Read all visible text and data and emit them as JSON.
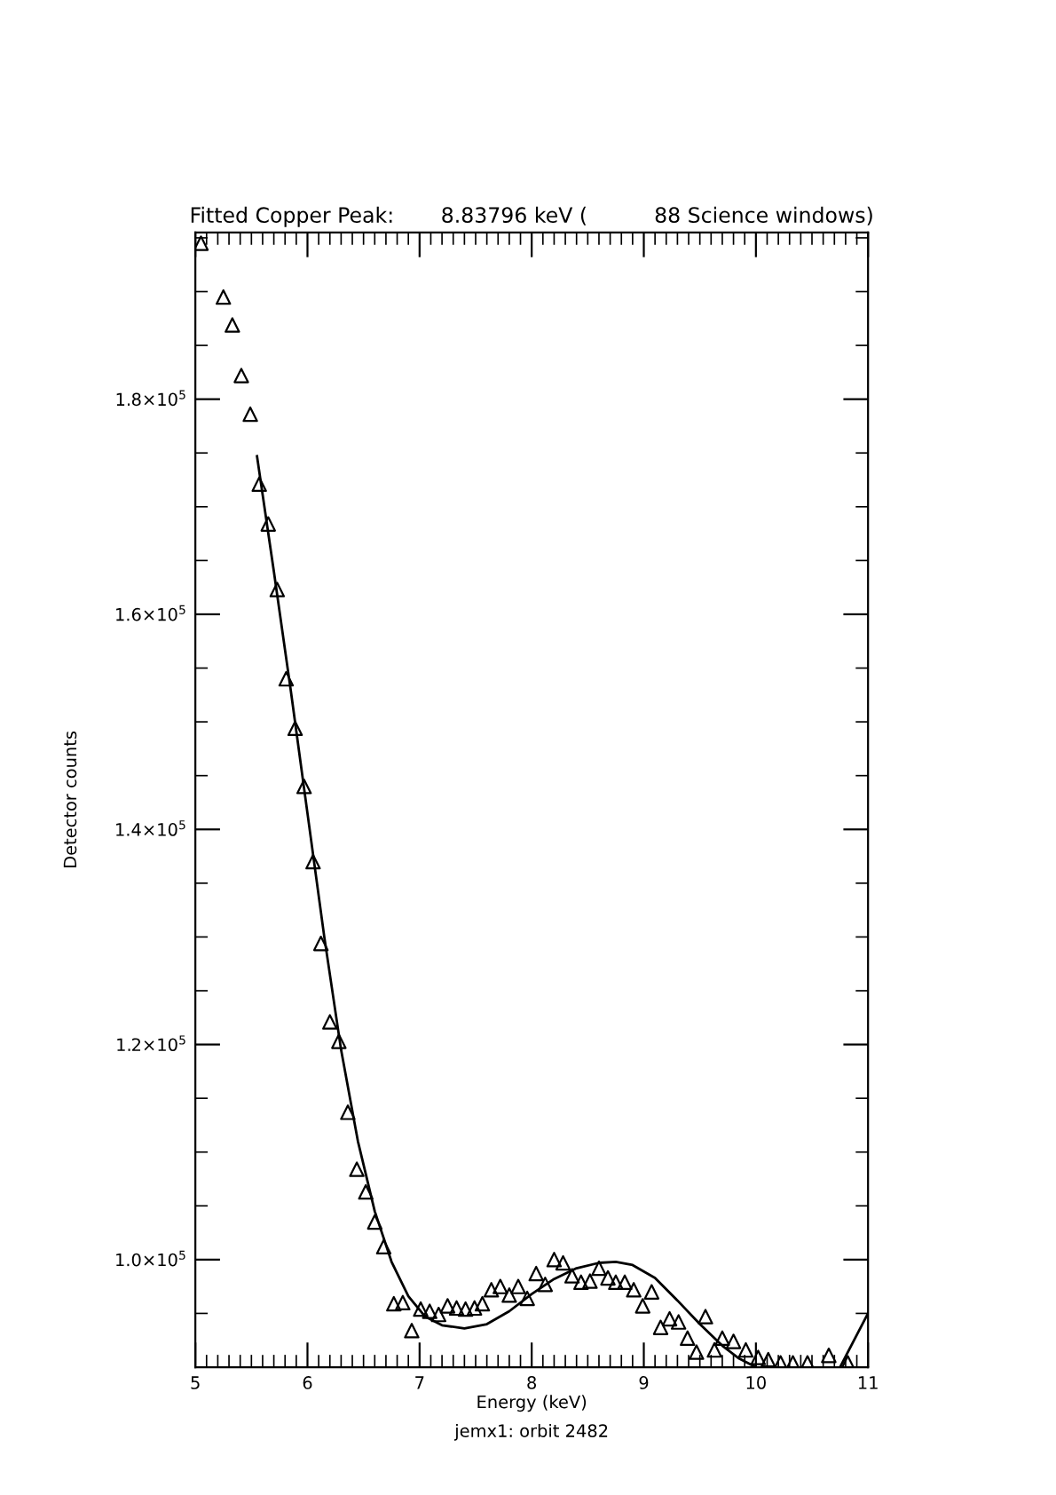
{
  "chart_data": {
    "type": "scatter",
    "title": "Fitted Copper Peak:       8.83796 keV (          88 Science windows)",
    "xlabel": "Energy (keV)",
    "ylabel": "Detector counts",
    "annotations": [
      "jemx1: orbit 2482"
    ],
    "marker": "triangle",
    "grid": false,
    "legend": false,
    "xlim": [
      5,
      11
    ],
    "ylim": [
      90000,
      195500
    ],
    "xticks": [
      5,
      {
        "value": 5.1,
        "label": null
      },
      {
        "value": 5.2,
        "label": null
      },
      {
        "value": 5.3,
        "label": null
      },
      {
        "value": 5.4,
        "label": null
      },
      {
        "value": 5.5,
        "label": null
      },
      {
        "value": 5.6,
        "label": null
      },
      {
        "value": 5.7,
        "label": null
      },
      {
        "value": 5.8,
        "label": null
      },
      {
        "value": 5.9,
        "label": null
      },
      6,
      {
        "value": 6.1,
        "label": null
      },
      {
        "value": 6.2,
        "label": null
      },
      {
        "value": 6.3,
        "label": null
      },
      {
        "value": 6.4,
        "label": null
      },
      {
        "value": 6.5,
        "label": null
      },
      {
        "value": 6.6,
        "label": null
      },
      {
        "value": 6.7,
        "label": null
      },
      {
        "value": 6.8,
        "label": null
      },
      {
        "value": 6.9,
        "label": null
      },
      7,
      {
        "value": 7.1,
        "label": null
      },
      {
        "value": 7.2,
        "label": null
      },
      {
        "value": 7.3,
        "label": null
      },
      {
        "value": 7.4,
        "label": null
      },
      {
        "value": 7.5,
        "label": null
      },
      {
        "value": 7.6,
        "label": null
      },
      {
        "value": 7.7,
        "label": null
      },
      {
        "value": 7.8,
        "label": null
      },
      {
        "value": 7.9,
        "label": null
      },
      8,
      {
        "value": 8.1,
        "label": null
      },
      {
        "value": 8.2,
        "label": null
      },
      {
        "value": 8.3,
        "label": null
      },
      {
        "value": 8.4,
        "label": null
      },
      {
        "value": 8.5,
        "label": null
      },
      {
        "value": 8.6,
        "label": null
      },
      {
        "value": 8.7,
        "label": null
      },
      {
        "value": 8.8,
        "label": null
      },
      {
        "value": 8.9,
        "label": null
      },
      9,
      {
        "value": 9.1,
        "label": null
      },
      {
        "value": 9.2,
        "label": null
      },
      {
        "value": 9.3,
        "label": null
      },
      {
        "value": 9.4,
        "label": null
      },
      {
        "value": 9.5,
        "label": null
      },
      {
        "value": 9.6,
        "label": null
      },
      {
        "value": 9.7,
        "label": null
      },
      {
        "value": 9.8,
        "label": null
      },
      {
        "value": 9.9,
        "label": null
      },
      10,
      {
        "value": 10.1,
        "label": null
      },
      {
        "value": 10.2,
        "label": null
      },
      {
        "value": 10.3,
        "label": null
      },
      {
        "value": 10.4,
        "label": null
      },
      {
        "value": 10.5,
        "label": null
      },
      {
        "value": 10.6,
        "label": null
      },
      {
        "value": 10.7,
        "label": null
      },
      {
        "value": 10.8,
        "label": null
      },
      {
        "value": 10.9,
        "label": null
      },
      11
    ],
    "yticks": [
      {
        "value": 90000,
        "label": null
      },
      {
        "value": 95000,
        "label": null
      },
      {
        "value": 100000,
        "label": "1.0×10$^{5}$"
      },
      {
        "value": 105000,
        "label": null
      },
      {
        "value": 110000,
        "label": null
      },
      {
        "value": 115000,
        "label": null
      },
      {
        "value": 120000,
        "label": "1.2×10$^{5}$"
      },
      {
        "value": 125000,
        "label": null
      },
      {
        "value": 130000,
        "label": null
      },
      {
        "value": 135000,
        "label": null
      },
      {
        "value": 140000,
        "label": "1.4×10$^{5}$"
      },
      {
        "value": 145000,
        "label": null
      },
      {
        "value": 150000,
        "label": null
      },
      {
        "value": 155000,
        "label": null
      },
      {
        "value": 160000,
        "label": "1.6×10$^{5}$"
      },
      {
        "value": 165000,
        "label": null
      },
      {
        "value": 170000,
        "label": null
      },
      {
        "value": 175000,
        "label": null
      },
      {
        "value": 180000,
        "label": "1.8×10$^{5}$"
      },
      {
        "value": 185000,
        "label": null
      },
      {
        "value": 190000,
        "label": null
      },
      {
        "value": 195000,
        "label": null
      }
    ],
    "series": [
      {
        "color": "#000000",
        "x": [
          5.05,
          5.25,
          5.33,
          5.41,
          5.49,
          5.57,
          5.65,
          5.73,
          5.81,
          5.89,
          5.97,
          6.05,
          6.12,
          6.2,
          6.28,
          6.36,
          6.44,
          6.52,
          6.6,
          6.68,
          6.77,
          6.85,
          6.93,
          7.01,
          7.09,
          7.17,
          7.25,
          7.33,
          7.41,
          7.49,
          7.56,
          7.64,
          7.72,
          7.8,
          7.88,
          7.96,
          8.04,
          8.12,
          8.2,
          8.28,
          8.36,
          8.44,
          8.52,
          8.6,
          8.68,
          8.75,
          8.83,
          8.91,
          8.99,
          9.07,
          9.15,
          9.23,
          9.31,
          9.39,
          9.47,
          9.55,
          9.63,
          9.7,
          9.8,
          9.91,
          10.02,
          10.11,
          10.22,
          10.33,
          10.46,
          10.65,
          10.82
        ],
        "values": [
          194500,
          189500,
          186900,
          182200,
          178600,
          172100,
          168400,
          162300,
          154000,
          149400,
          144000,
          137000,
          129400,
          122100,
          120300,
          113700,
          108400,
          106300,
          103500,
          101200,
          95900,
          96000,
          93400,
          95400,
          95200,
          94900,
          95700,
          95500,
          95400,
          95500,
          95900,
          97200,
          97500,
          96700,
          97500,
          96400,
          98700,
          97700,
          100000,
          99700,
          98500,
          97900,
          98000,
          99200,
          98300,
          97900,
          97900,
          97200,
          95700,
          97000,
          93700,
          94500,
          94200,
          92700,
          91400,
          94700,
          91600,
          92700,
          92400,
          91600,
          90900,
          90700,
          90400,
          90400,
          90400,
          91100,
          90400
        ]
      },
      {
        "type": "line",
        "color": "#000000",
        "marker": "none",
        "line_style": "solid",
        "x": [
          5.55,
          5.7,
          5.85,
          6.0,
          6.15,
          6.3,
          6.45,
          6.6,
          6.75,
          6.9,
          7.05,
          7.2,
          7.4,
          7.6,
          7.8,
          8.0,
          8.2,
          8.4,
          8.6,
          8.75,
          8.9,
          9.1,
          9.3,
          9.5,
          9.7,
          9.85,
          10.0,
          10.4,
          10.75,
          10.9,
          11.0
        ],
        "values": [
          174700,
          164000,
          153000,
          141500,
          130000,
          119500,
          111000,
          104500,
          99800,
          96600,
          94700,
          93900,
          93600,
          94000,
          95200,
          96800,
          98200,
          99200,
          99700,
          99800,
          99500,
          98300,
          96200,
          94000,
          92000,
          90800,
          90000,
          null,
          90000,
          93000,
          95000
        ]
      }
    ]
  }
}
